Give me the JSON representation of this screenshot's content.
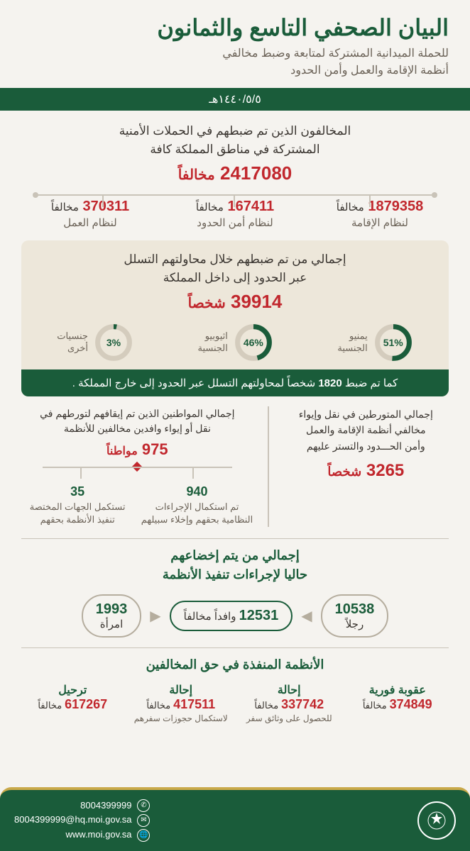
{
  "header": {
    "title": "البيان الصحفي التاسع والثمانون",
    "subtitle": "للحملة الميدانية المشتركة لمتابعة وضبط مخالفي\nأنظمة الإقامة والعمل وأمن الحدود",
    "date": "١٤٤٠/٥/٥هـ"
  },
  "section1": {
    "title": "المخالفون الذين تم ضبطهم في الحملات الأمنية\nالمشتركة في مناطق المملكة كافة",
    "total_number": "2417080",
    "total_unit": "مخالفاً",
    "items": [
      {
        "number": "1879358",
        "unit": "مخالفاً",
        "label": "لنظام الإقامة"
      },
      {
        "number": "167411",
        "unit": "مخالفاً",
        "label": "لنظام أمن الحدود"
      },
      {
        "number": "370311",
        "unit": "مخالفاً",
        "label": "لنظام العمل"
      }
    ]
  },
  "section2": {
    "title": "إجمالي من تم ضبطهم خلال محاولتهم التسلل\nعبر الحدود إلى داخل المملكة",
    "total_number": "39914",
    "total_unit": "شخصاً",
    "donuts": [
      {
        "pct": 51,
        "pct_text": "51%",
        "label": "يمنيو\nالجنسية"
      },
      {
        "pct": 46,
        "pct_text": "46%",
        "label": "اثيوبيو\nالجنسية"
      },
      {
        "pct": 3,
        "pct_text": "3%",
        "label": "جنسيات\nأخرى"
      }
    ],
    "banner_prefix": "كما تم ضبط ",
    "banner_number": "1820",
    "banner_suffix": " شخصاً لمحاولتهم التسلل عبر الحدود إلى خارج المملكة ."
  },
  "section3": {
    "right": {
      "text": "إجمالي المتورطين في نقل وإيواء\nمخالفي أنظمة الإقامة والعمل\nوأمن الحـــدود والتستر عليهم",
      "number": "3265",
      "unit": "شخصاً"
    },
    "left": {
      "text": "إجمالي المواطنين الذين تم إيقافهم لتورطهم في\nنقل أو إيواء وافدين مخالفين للأنظمة",
      "number": "975",
      "unit": "مواطناً",
      "split": [
        {
          "n": "940",
          "t": "تم استكمال الإجراءات\nالنظامية بحقهم وإخلاء سبيلهم"
        },
        {
          "n": "35",
          "t": "تستكمل الجهات المختصة\nتنفيذ الأنظمة بحقهم"
        }
      ]
    }
  },
  "section4": {
    "title": "إجمالي من يتم إخضاعهم\nحاليا لإجراءات تنفيذ الأنظمة",
    "pills": [
      {
        "n": "10538",
        "t": "رجلاً"
      },
      {
        "n": "12531",
        "t": "وافداً مخالفاً"
      },
      {
        "n": "1993",
        "t": "امرأة"
      }
    ]
  },
  "section5": {
    "title": "الأنظمة المنفذة في حق المخالفين",
    "items": [
      {
        "t": "عقوبة فورية",
        "n": "374849",
        "u": "مخالفاً",
        "d": ""
      },
      {
        "t": "إحالة",
        "n": "337742",
        "u": "مخالفاً",
        "d": "للحصول على وثائق سفر"
      },
      {
        "t": "إحالة",
        "n": "417511",
        "u": "مخالفاً",
        "d": "لاستكمال حجوزات سفرهم"
      },
      {
        "t": "ترحيل",
        "n": "617267",
        "u": "مخالفاً",
        "d": ""
      }
    ]
  },
  "footer": {
    "phone": "8004399999",
    "email": "8004399999@hq.moi.gov.sa",
    "web": "www.moi.gov.sa"
  },
  "colors": {
    "green": "#1a5c3a",
    "red": "#c1272d",
    "beige": "#ede7da",
    "bg": "#f5f3ef",
    "grey": "#6b6257",
    "gold": "#c9a94a",
    "line": "#c9c3b8"
  }
}
